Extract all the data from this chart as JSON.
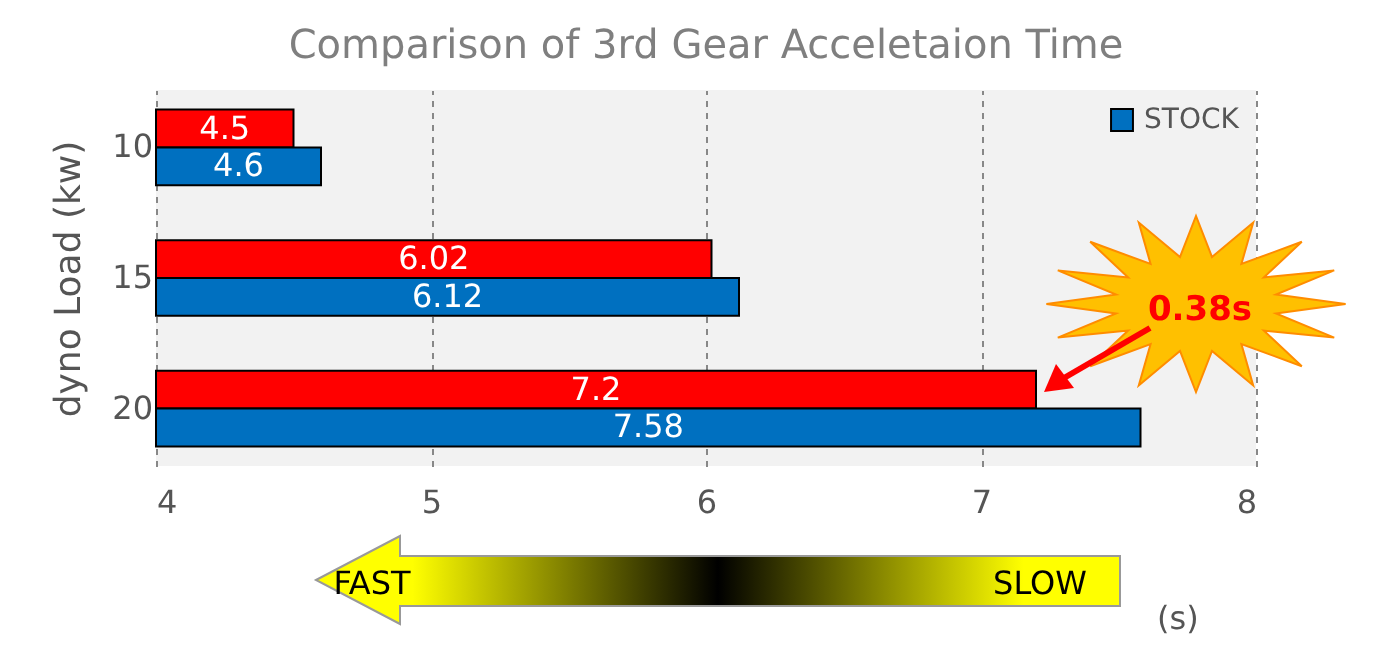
{
  "chart_data": {
    "type": "bar",
    "orientation": "horizontal",
    "title": "Comparison of 3rd Gear Acceletaion Time",
    "ylabel": "dyno Load (kw)",
    "xlabel": "(s)",
    "categories": [
      "10",
      "15",
      "20"
    ],
    "series": [
      {
        "color": "#ff0000",
        "values": [
          4.5,
          6.02,
          7.2
        ]
      },
      {
        "name": "STOCK",
        "color": "#0070c0",
        "values": [
          4.6,
          6.12,
          7.58
        ]
      }
    ],
    "xlim": [
      4,
      8
    ],
    "xticks": [
      4,
      5,
      6,
      7,
      8
    ],
    "grid": "x",
    "legend": "top right",
    "data_labels": true,
    "annotations": [
      "0.38s",
      "FAST",
      "SLOW"
    ]
  }
}
